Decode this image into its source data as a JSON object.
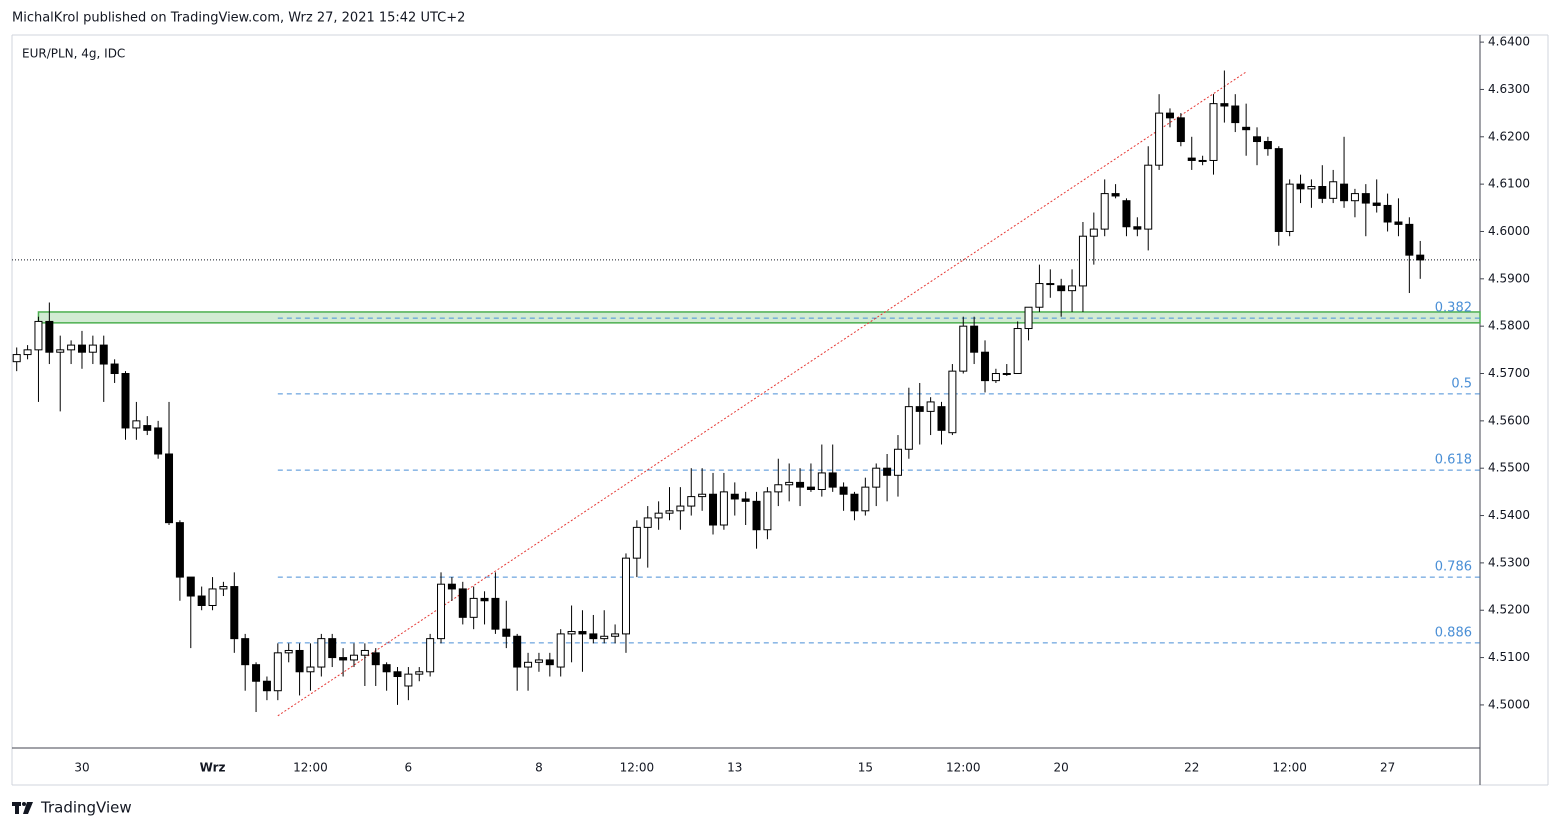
{
  "header": {
    "text": "MichalKrol published on TradingView.com, Wrz 27, 2021 15:42 UTC+2"
  },
  "footer": {
    "brand": "TradingView"
  },
  "chart_data": {
    "type": "candlestick",
    "title": "EUR/PLN, 4g, IDC",
    "categories": [
      null,
      null,
      null,
      null,
      null,
      null,
      "30",
      null,
      null,
      null,
      null,
      null,
      null,
      null,
      null,
      null,
      null,
      null,
      "Wrz",
      null,
      null,
      null,
      null,
      null,
      null,
      null,
      null,
      "12:00",
      null,
      null,
      null,
      null,
      null,
      null,
      null,
      null,
      "6",
      null,
      null,
      null,
      null,
      null,
      null,
      null,
      null,
      null,
      null,
      null,
      "8",
      null,
      null,
      null,
      null,
      null,
      null,
      null,
      null,
      "12:00",
      null,
      null,
      null,
      null,
      null,
      null,
      null,
      null,
      "13",
      null,
      null,
      null,
      null,
      null,
      null,
      null,
      null,
      null,
      null,
      null,
      "15",
      null,
      null,
      null,
      null,
      null,
      null,
      null,
      null,
      "12:00",
      null,
      null,
      null,
      null,
      null,
      null,
      null,
      null,
      "20",
      null,
      null,
      null,
      null,
      null,
      null,
      null,
      null,
      null,
      null,
      null,
      "22",
      null,
      null,
      null,
      null,
      null,
      null,
      null,
      null,
      "12:00",
      null,
      null,
      null,
      null,
      null,
      null,
      null,
      null,
      "27",
      null,
      null,
      null
    ],
    "open": [
      4.5725,
      4.574,
      4.575,
      4.581,
      4.5745,
      4.575,
      4.576,
      4.5745,
      4.576,
      4.572,
      4.57,
      4.5585,
      4.559,
      4.5585,
      4.553,
      4.5385,
      4.527,
      4.523,
      4.521,
      4.5245,
      4.525,
      4.514,
      4.5085,
      4.505,
      4.503,
      4.511,
      4.5115,
      4.507,
      4.508,
      4.514,
      4.51,
      4.5095,
      4.5105,
      4.511,
      4.5085,
      4.507,
      4.504,
      4.5065,
      4.507,
      4.514,
      4.5255,
      4.5245,
      4.5185,
      4.5225,
      4.5225,
      4.516,
      4.5145,
      4.508,
      4.509,
      4.5095,
      4.508,
      4.515,
      4.5155,
      4.515,
      4.514,
      4.5145,
      4.515,
      4.531,
      4.5375,
      4.5395,
      4.5405,
      4.541,
      4.542,
      4.544,
      4.5445,
      4.538,
      4.5445,
      4.5435,
      4.543,
      4.537,
      4.545,
      4.5465,
      4.547,
      4.546,
      4.5455,
      4.549,
      4.546,
      4.5445,
      4.541,
      4.546,
      4.55,
      4.5485,
      4.554,
      4.563,
      4.562,
      4.563,
      4.5575,
      4.5705,
      4.58,
      4.5745,
      4.5685,
      4.57,
      4.57,
      4.5795,
      4.584,
      4.589,
      4.5885,
      4.5875,
      4.5885,
      4.599,
      4.6005,
      4.608,
      4.6065,
      4.601,
      4.6005,
      4.614,
      4.625,
      4.624,
      4.6155,
      4.615,
      4.615,
      4.627,
      4.6265,
      4.622,
      4.62,
      4.619,
      4.6175,
      4.6,
      4.61,
      4.609,
      4.6095,
      4.607,
      4.61,
      4.6065,
      4.608,
      4.606,
      4.6055,
      4.602,
      4.6015,
      4.595
    ],
    "high": [
      4.5755,
      4.576,
      4.582,
      4.585,
      4.578,
      4.577,
      4.579,
      4.578,
      4.578,
      4.573,
      4.5705,
      4.564,
      4.561,
      4.56,
      4.564,
      4.539,
      4.527,
      4.525,
      4.527,
      4.526,
      4.528,
      4.515,
      4.509,
      4.506,
      4.513,
      4.513,
      4.513,
      4.513,
      4.515,
      4.515,
      4.512,
      4.513,
      4.513,
      4.512,
      4.509,
      4.508,
      4.508,
      4.508,
      4.515,
      4.528,
      4.527,
      4.526,
      4.525,
      4.524,
      4.528,
      4.522,
      4.515,
      4.511,
      4.511,
      4.511,
      4.516,
      4.521,
      4.52,
      4.519,
      4.52,
      4.517,
      4.532,
      4.539,
      4.542,
      4.543,
      4.546,
      4.546,
      4.55,
      4.55,
      4.549,
      4.549,
      4.547,
      4.545,
      4.545,
      4.546,
      4.552,
      4.551,
      4.55,
      4.551,
      4.555,
      4.555,
      4.547,
      4.545,
      4.548,
      4.551,
      4.553,
      4.557,
      4.567,
      4.568,
      4.565,
      4.564,
      4.572,
      4.582,
      4.582,
      4.577,
      4.571,
      4.572,
      4.581,
      4.584,
      4.593,
      4.592,
      4.59,
      4.592,
      4.602,
      4.604,
      4.611,
      4.61,
      4.607,
      4.603,
      4.618,
      4.629,
      4.626,
      4.625,
      4.62,
      4.616,
      4.629,
      4.634,
      4.629,
      4.627,
      4.622,
      4.62,
      4.618,
      4.611,
      4.612,
      4.611,
      4.614,
      4.613,
      4.62,
      4.609,
      4.61,
      4.611,
      4.608,
      4.607,
      4.603,
      4.598
    ],
    "low": [
      4.5705,
      4.573,
      4.564,
      4.572,
      4.562,
      4.572,
      4.571,
      4.572,
      4.564,
      4.568,
      4.556,
      4.556,
      4.557,
      4.552,
      4.538,
      4.522,
      4.512,
      4.52,
      4.52,
      4.523,
      4.511,
      4.503,
      4.4985,
      4.501,
      4.501,
      4.509,
      4.502,
      4.503,
      4.506,
      4.508,
      4.506,
      4.508,
      4.504,
      4.504,
      4.503,
      4.5,
      4.501,
      4.505,
      4.506,
      4.513,
      4.522,
      4.517,
      4.516,
      4.517,
      4.515,
      4.512,
      4.503,
      4.503,
      4.507,
      4.506,
      4.506,
      4.509,
      4.507,
      4.513,
      4.513,
      4.513,
      4.511,
      4.527,
      4.529,
      4.537,
      4.539,
      4.537,
      4.54,
      4.541,
      4.536,
      4.537,
      4.54,
      4.538,
      4.533,
      4.535,
      4.542,
      4.543,
      4.542,
      4.545,
      4.544,
      4.545,
      4.541,
      4.539,
      4.54,
      4.542,
      4.543,
      4.544,
      4.552,
      4.555,
      4.557,
      4.555,
      4.557,
      4.57,
      4.572,
      4.566,
      4.568,
      4.5695,
      4.57,
      4.577,
      4.583,
      4.586,
      4.582,
      4.583,
      4.583,
      4.593,
      4.599,
      4.607,
      4.599,
      4.599,
      4.596,
      4.613,
      4.622,
      4.618,
      4.613,
      4.614,
      4.612,
      4.623,
      4.621,
      4.616,
      4.614,
      4.616,
      4.597,
      4.599,
      4.606,
      4.605,
      4.606,
      4.606,
      4.605,
      4.603,
      4.599,
      4.604,
      4.6,
      4.599,
      4.587,
      4.59
    ],
    "close": [
      4.574,
      4.575,
      4.581,
      4.5745,
      4.575,
      4.576,
      4.5745,
      4.576,
      4.572,
      4.57,
      4.5585,
      4.56,
      4.558,
      4.553,
      4.5385,
      4.527,
      4.523,
      4.521,
      4.5245,
      4.525,
      4.514,
      4.5085,
      4.505,
      4.503,
      4.511,
      4.5115,
      4.507,
      4.508,
      4.514,
      4.51,
      4.5095,
      4.5105,
      4.5115,
      4.5085,
      4.507,
      4.506,
      4.5065,
      4.507,
      4.514,
      4.5255,
      4.5245,
      4.5185,
      4.5225,
      4.522,
      4.516,
      4.5145,
      4.508,
      4.509,
      4.5095,
      4.5085,
      4.515,
      4.5155,
      4.515,
      4.514,
      4.5145,
      4.515,
      4.531,
      4.5375,
      4.5395,
      4.5405,
      4.541,
      4.542,
      4.544,
      4.5445,
      4.538,
      4.545,
      4.5435,
      4.543,
      4.537,
      4.545,
      4.5465,
      4.547,
      4.546,
      4.5455,
      4.549,
      4.546,
      4.5445,
      4.541,
      4.546,
      4.55,
      4.5485,
      4.554,
      4.563,
      4.562,
      4.564,
      4.558,
      4.5705,
      4.58,
      4.5745,
      4.5685,
      4.57,
      4.57,
      4.5795,
      4.584,
      4.589,
      4.589,
      4.5875,
      4.5885,
      4.599,
      4.6005,
      4.608,
      4.6075,
      4.601,
      4.6005,
      4.614,
      4.625,
      4.624,
      4.619,
      4.615,
      4.615,
      4.627,
      4.6265,
      4.623,
      4.6215,
      4.619,
      4.6175,
      4.6,
      4.61,
      4.609,
      4.6095,
      4.607,
      4.6105,
      4.6065,
      4.608,
      4.606,
      4.6055,
      4.602,
      4.6015,
      4.595,
      4.594
    ],
    "up_color": "#ffffff",
    "down_color": "#000000",
    "ylim": [
      4.4909,
      4.6415
    ],
    "yticks": [
      {
        "value": 4.5,
        "label": "4.5000"
      },
      {
        "value": 4.51,
        "label": "4.5100"
      },
      {
        "value": 4.52,
        "label": "4.5200"
      },
      {
        "value": 4.53,
        "label": "4.5300"
      },
      {
        "value": 4.54,
        "label": "4.5400"
      },
      {
        "value": 4.55,
        "label": "4.5500"
      },
      {
        "value": 4.56,
        "label": "4.5600"
      },
      {
        "value": 4.57,
        "label": "4.5700"
      },
      {
        "value": 4.58,
        "label": "4.5800"
      },
      {
        "value": 4.59,
        "label": "4.5900"
      },
      {
        "value": 4.6,
        "label": "4.6000"
      },
      {
        "value": 4.61,
        "label": "4.6100"
      },
      {
        "value": 4.62,
        "label": "4.6200"
      },
      {
        "value": 4.63,
        "label": "4.6300"
      },
      {
        "value": 4.64,
        "label": "4.6400"
      }
    ],
    "grid": false,
    "zone": {
      "x": 2,
      "range": [
        4.5807,
        4.583
      ],
      "color": "#4caf50"
    },
    "trendline": {
      "x": [
        24,
        113
      ],
      "values": [
        4.4977,
        4.6337
      ],
      "color": "#e53935"
    },
    "fib_levels": {
      "color": "#4a8fd6",
      "levels": [
        {
          "label": "0.382",
          "value": 4.5817
        },
        {
          "label": "0.5",
          "value": 4.5657
        },
        {
          "label": "0.618",
          "value": 4.5496
        },
        {
          "label": "0.786",
          "value": 4.527
        },
        {
          "label": "0.886",
          "value": 4.5131
        }
      ]
    }
  }
}
